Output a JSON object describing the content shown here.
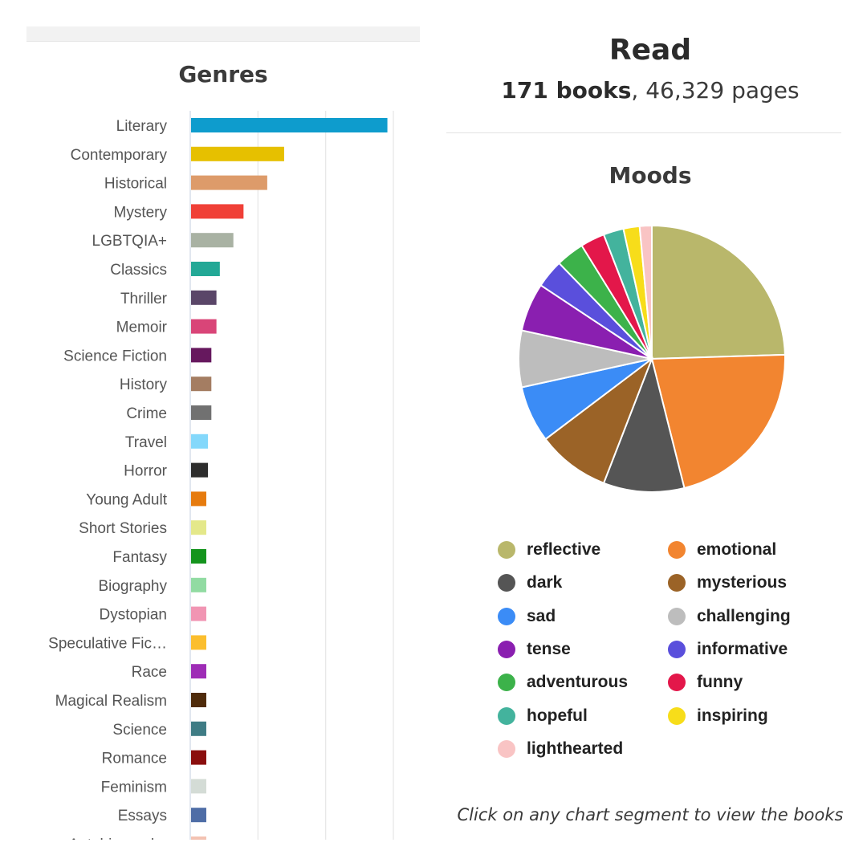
{
  "read": {
    "title": "Read",
    "books": "171 books",
    "pages": ", 46,329 pages"
  },
  "hint": "Click on any chart segment to view the books",
  "chart_data": [
    {
      "type": "bar",
      "orientation": "horizontal",
      "title": "Genres",
      "categories": [
        "Literary",
        "Contemporary",
        "Historical",
        "Mystery",
        "LGBTQIA+",
        "Classics",
        "Thriller",
        "Memoir",
        "Science Fiction",
        "History",
        "Crime",
        "Travel",
        "Horror",
        "Young Adult",
        "Short Stories",
        "Fantasy",
        "Biography",
        "Dystopian",
        "Speculative Fic…",
        "Race",
        "Magical Realism",
        "Science",
        "Romance",
        "Feminism",
        "Essays",
        "Autobiography"
      ],
      "values": [
        116,
        55,
        45,
        31,
        25,
        17,
        15,
        15,
        12,
        12,
        12,
        10,
        10,
        9,
        9,
        9,
        9,
        9,
        9,
        9,
        9,
        9,
        9,
        9,
        9,
        9
      ],
      "colors": [
        "#0e9ccd",
        "#e6c000",
        "#dd9b6a",
        "#f04037",
        "#a9b2a3",
        "#23a896",
        "#5a4668",
        "#d94578",
        "#66185e",
        "#a47d62",
        "#717171",
        "#84d8fb",
        "#2d2d2d",
        "#e67b0e",
        "#e4e88a",
        "#14941d",
        "#91dba2",
        "#f195b3",
        "#fbbe2e",
        "#9e2cb6",
        "#4f2b0b",
        "#3f7c85",
        "#8a0e0e",
        "#d4dcd6",
        "#4e6da6",
        "#f3c2b2"
      ],
      "xlim": [
        0,
        120
      ],
      "grid": true
    },
    {
      "type": "pie",
      "title": "Moods",
      "labels": [
        "reflective",
        "emotional",
        "dark",
        "mysterious",
        "sad",
        "challenging",
        "tense",
        "informative",
        "adventurous",
        "funny",
        "hopeful",
        "inspiring",
        "lighthearted"
      ],
      "values": [
        25,
        22,
        10,
        9,
        7,
        7,
        6,
        3.5,
        3.5,
        3,
        2.5,
        2,
        1.5
      ],
      "colors": [
        "#b9b76b",
        "#f28530",
        "#555555",
        "#9b6327",
        "#3b8cf6",
        "#bdbdbd",
        "#8a1fb0",
        "#5a4fdc",
        "#3cb24a",
        "#e3174a",
        "#43b39d",
        "#f7dd1a",
        "#f9c4c4"
      ]
    }
  ]
}
